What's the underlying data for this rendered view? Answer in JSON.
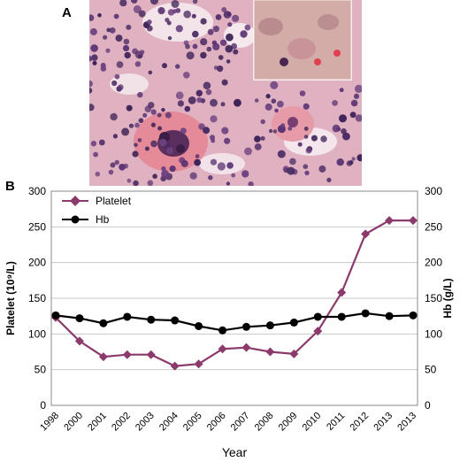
{
  "panels": {
    "a": "A",
    "b": "B"
  },
  "chart_data": {
    "type": "line",
    "categories": [
      "1998",
      "2000",
      "2001",
      "2002",
      "2003",
      "2004",
      "2005",
      "2006",
      "2007",
      "2008",
      "2009",
      "2010",
      "2011",
      "2012",
      "2013",
      "2013"
    ],
    "xlabel": "Year",
    "ylabel_left": "Platelet (10⁹/L)",
    "ylabel_right": "Hb (g/L)",
    "ylim": [
      0,
      300
    ],
    "yticks": [
      0,
      50,
      100,
      150,
      200,
      250,
      300
    ],
    "grid": true,
    "legend_position": "top-left",
    "series": [
      {
        "name": "Platelet",
        "axis": "left",
        "marker": "diamond",
        "color": "#8B3A6B",
        "values": [
          123,
          90,
          68,
          71,
          71,
          55,
          58,
          79,
          81,
          75,
          72,
          104,
          158,
          240,
          259,
          259
        ]
      },
      {
        "name": "Hb",
        "axis": "right",
        "marker": "circle",
        "color": "#000000",
        "values": [
          126,
          122,
          115,
          124,
          120,
          119,
          111,
          105,
          110,
          112,
          116,
          124,
          124,
          129,
          125,
          126
        ]
      }
    ]
  }
}
